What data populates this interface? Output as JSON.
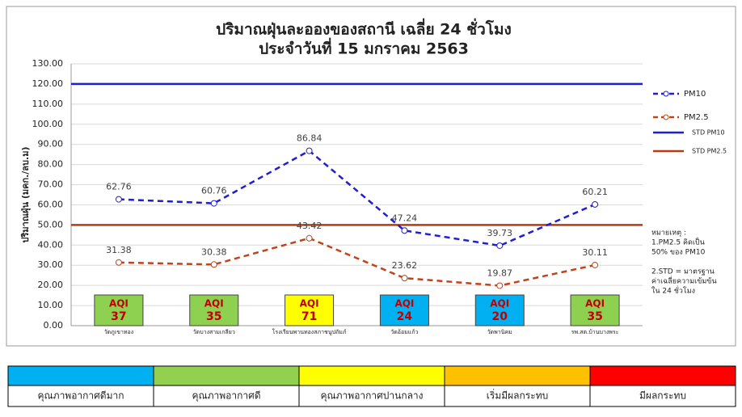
{
  "chart_data": {
    "type": "line",
    "title": "ปริมาณฝุ่นละอองของสถานี เฉลี่ย 24 ชั่วโมง",
    "subtitle": "ประจำวันที่  15 มกราคม 2563",
    "y_label": "ปริมาณฝุ่น (มคก./ลบ.ม)",
    "categories": [
      "วัดภูเขาทอง",
      "วัดบางสามเกลียว",
      "โรงเรียนพานทองสภาชนูปถัมภ์",
      "วัดอ้อมแก้ว",
      "วัดพานิคม",
      "รพ.สต.บ้านบางพระ"
    ],
    "series": [
      {
        "name": "PM10",
        "color": "#1f1fcf",
        "values": [
          62.76,
          60.76,
          86.84,
          47.24,
          39.73,
          60.21
        ]
      },
      {
        "name": "PM2.5",
        "color": "#c0441a",
        "values": [
          31.38,
          30.38,
          43.42,
          23.62,
          19.87,
          30.11
        ]
      }
    ],
    "std_lines": [
      {
        "name": "STD PM10",
        "color": "#1f1fcf",
        "value": 120
      },
      {
        "name": "STD PM2.5",
        "color": "#b53a12",
        "value": 50
      }
    ],
    "aqi_label": "AQI",
    "aqi": [
      {
        "value": 37,
        "color": "#8ed04f"
      },
      {
        "value": 35,
        "color": "#8ed04f"
      },
      {
        "value": 71,
        "color": "#ffff00"
      },
      {
        "value": 24,
        "color": "#00b0f0"
      },
      {
        "value": 20,
        "color": "#00b0f0"
      },
      {
        "value": 35,
        "color": "#8ed04f"
      }
    ],
    "notes": [
      "หมายเหตุ :",
      "1.PM2.5 คิดเป็น",
      "50% ของ PM10",
      "",
      "2.STD = มาตรฐาน",
      "ค่าเฉลี่ยความเข้มข้น",
      "ใน 24 ชั่วโมง"
    ],
    "ylim": [
      0,
      130
    ],
    "yticks": [
      {
        "value": 0,
        "label": "0.00"
      },
      {
        "value": 10,
        "label": "10.00"
      },
      {
        "value": 20,
        "label": "20.00"
      },
      {
        "value": 30,
        "label": "30.00"
      },
      {
        "value": 40,
        "label": "40.00"
      },
      {
        "value": 50,
        "label": "50.00"
      },
      {
        "value": 60,
        "label": "60.00"
      },
      {
        "value": 70,
        "label": "70.00"
      },
      {
        "value": 80,
        "label": "80.00"
      },
      {
        "value": 90,
        "label": "90.00"
      },
      {
        "value": 100,
        "label": "100.00"
      },
      {
        "value": 110,
        "label": "110.00"
      },
      {
        "value": 120,
        "label": "120.00"
      },
      {
        "value": 130,
        "label": "130.00"
      }
    ],
    "grid": true
  },
  "aqi_scale": [
    {
      "label": "คุณภาพอากาศดีมาก",
      "color": "#00b0f0"
    },
    {
      "label": "คุณภาพอากาศดี",
      "color": "#92d050"
    },
    {
      "label": "คุณภาพอากาศปานกลาง",
      "color": "#ffff00"
    },
    {
      "label": "เริ่มมีผลกระทบ",
      "color": "#ffc000"
    },
    {
      "label": "มีผลกระทบ",
      "color": "#ff0000"
    }
  ]
}
